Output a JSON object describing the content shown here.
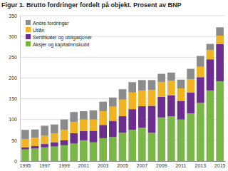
{
  "chart_data": {
    "type": "bar",
    "title": "Figur 1. Brutto fordringer fordelt på objekt. Prosent av BNP",
    "categories": [
      "1995",
      null,
      "1997",
      null,
      "1999",
      null,
      "2001",
      null,
      "2003",
      null,
      "2005",
      null,
      "2007",
      null,
      "2009",
      null,
      "2011",
      null,
      "2013",
      null,
      "2015"
    ],
    "series": [
      {
        "name": "Aksjer og kapitalinnskudd",
        "color": "#7ab648",
        "values": [
          28,
          30,
          33,
          35,
          38,
          42,
          50,
          45,
          55,
          58,
          68,
          75,
          80,
          68,
          105,
          108,
          100,
          115,
          140,
          170,
          192
        ]
      },
      {
        "name": "Sertifikater og obligasjoner",
        "color": "#6b2d8e",
        "values": [
          5,
          6,
          8,
          10,
          12,
          25,
          22,
          28,
          32,
          38,
          40,
          50,
          52,
          65,
          50,
          50,
          45,
          50,
          62,
          75,
          90
        ]
      },
      {
        "name": "Utlån",
        "color": "#f0b323",
        "values": [
          20,
          20,
          20,
          22,
          25,
          27,
          28,
          27,
          33,
          35,
          40,
          40,
          38,
          38,
          35,
          35,
          30,
          32,
          25,
          22,
          20
        ]
      },
      {
        "name": "Andre fordringer",
        "color": "#8c8c8c",
        "values": [
          22,
          20,
          24,
          21,
          25,
          24,
          20,
          22,
          23,
          22,
          25,
          25,
          25,
          24,
          20,
          20,
          21,
          25,
          26,
          15,
          20
        ]
      }
    ],
    "ylim": [
      0,
      350
    ],
    "yticks": [
      0,
      50,
      100,
      150,
      200,
      250,
      300,
      350
    ],
    "grid": true,
    "stacked": true,
    "legend": "top-left"
  }
}
